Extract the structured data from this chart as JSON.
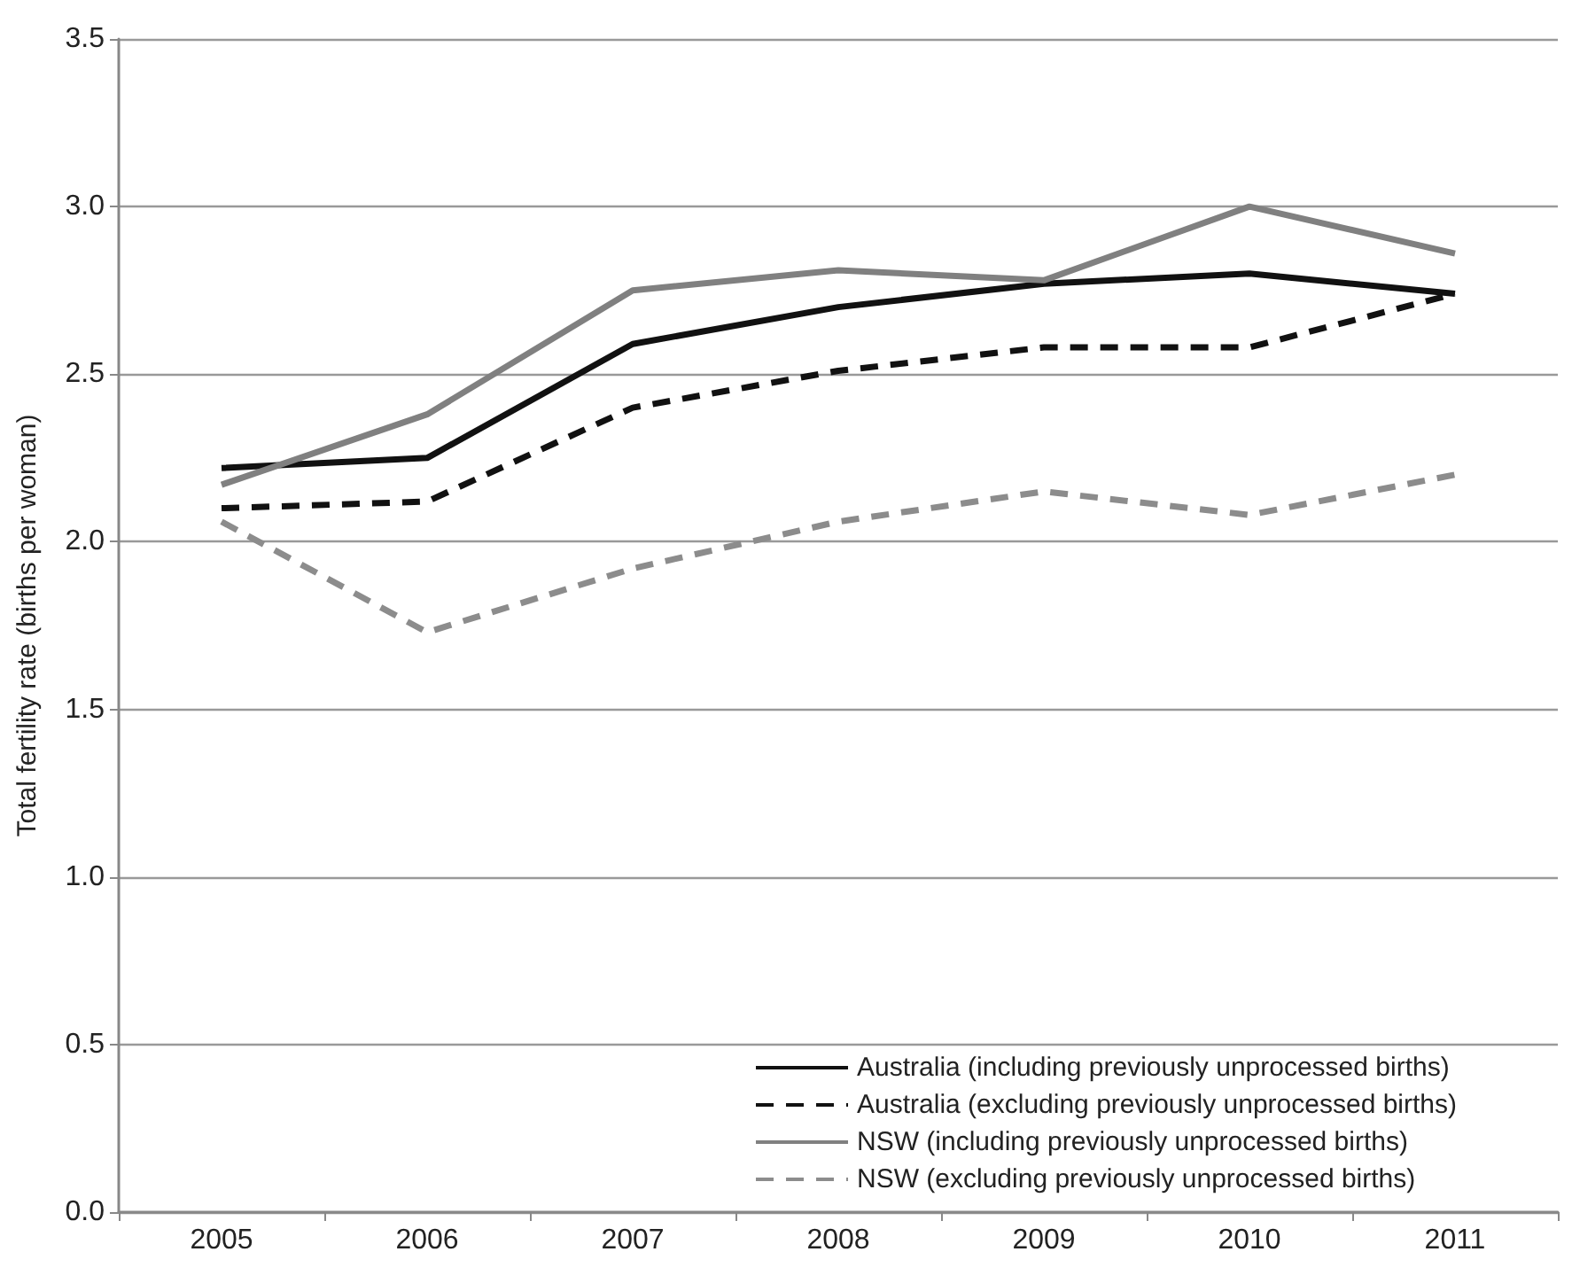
{
  "chart_data": {
    "type": "line",
    "ylabel": "Total fertility rate (births per woman)",
    "categories": [
      "2005",
      "2006",
      "2007",
      "2008",
      "2009",
      "2010",
      "2011"
    ],
    "series": [
      {
        "name": "Australia (including previously unprocessed births)",
        "color": "#111111",
        "line_style": "solid",
        "values": [
          2.22,
          2.25,
          2.59,
          2.7,
          2.77,
          2.8,
          2.74
        ]
      },
      {
        "name": "Australia (excluding previously unprocessed births)",
        "color": "#111111",
        "line_style": "dashed",
        "values": [
          2.1,
          2.12,
          2.4,
          2.51,
          2.58,
          2.58,
          2.74
        ]
      },
      {
        "name": "NSW (including previously unprocessed births)",
        "color": "#808080",
        "line_style": "solid",
        "values": [
          2.17,
          2.38,
          2.75,
          2.81,
          2.78,
          3.0,
          2.86
        ]
      },
      {
        "name": "NSW (excluding previously unprocessed births)",
        "color": "#8c8c8c",
        "line_style": "dashed",
        "values": [
          2.06,
          1.73,
          1.92,
          2.06,
          2.15,
          2.08,
          2.2
        ]
      }
    ],
    "ylim": [
      0,
      3.5
    ],
    "yticks": [
      {
        "value": 0,
        "label": "0.0"
      },
      {
        "value": 0.5,
        "label": "0.5"
      },
      {
        "value": 1,
        "label": "1.0"
      },
      {
        "value": 1.5,
        "label": "1.5"
      },
      {
        "value": 2,
        "label": "2.0"
      },
      {
        "value": 2.5,
        "label": "2.5"
      },
      {
        "value": 3,
        "label": "3.0"
      },
      {
        "value": 3.5,
        "label": "3.5"
      }
    ],
    "grid": "y",
    "legend": "bottom right",
    "marker": "none"
  }
}
